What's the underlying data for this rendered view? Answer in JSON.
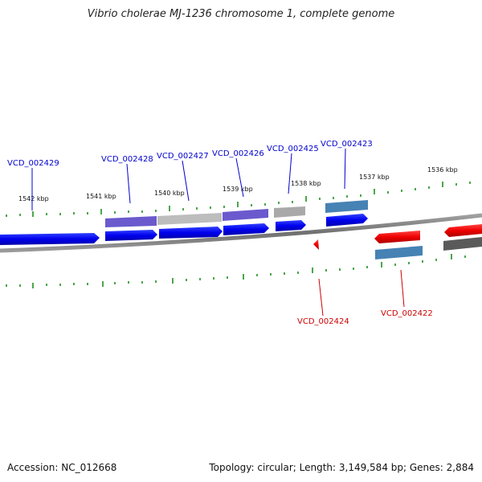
{
  "title": "Vibrio cholerae MJ-1236 chromosome 1, complete genome",
  "footer": {
    "accession": "Accession: NC_012668",
    "summary": "Topology: circular; Length: 3,149,584 bp; Genes: 2,884"
  },
  "colors": {
    "forward_gene": "#0000ee",
    "reverse_gene": "#ee0000",
    "backbone": "#808080",
    "tick": "#118811",
    "forward_label": "#0000cc",
    "reverse_label": "#cc0000"
  },
  "scale_labels": [
    "1542 kbp",
    "1541 kbp",
    "1540 kbp",
    "1539 kbp",
    "1538 kbp",
    "1537 kbp",
    "1536 kbp"
  ],
  "forward_genes": [
    {
      "locus": "VCD_002429",
      "feature_color": "#5e55cc"
    },
    {
      "locus": "VCD_002428",
      "feature_color": "#6a5acd"
    },
    {
      "locus": "VCD_002427",
      "feature_color": "#b8b8b8"
    },
    {
      "locus": "VCD_002426",
      "feature_color": "#6a5acd"
    },
    {
      "locus": "VCD_002425",
      "feature_color": "#a8a8a8"
    },
    {
      "locus": "VCD_002423",
      "feature_color": "#4682b4"
    }
  ],
  "reverse_genes": [
    {
      "locus": "VCD_002424",
      "feature_color": "#ee0000"
    },
    {
      "locus": "VCD_002422",
      "feature_color": "#4682b4"
    },
    {
      "locus": "",
      "feature_color": "#555555"
    }
  ]
}
